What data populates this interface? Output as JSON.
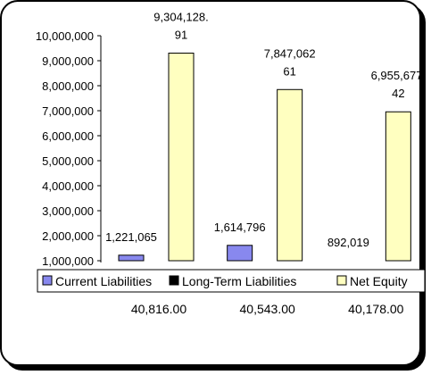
{
  "chart_data": {
    "type": "bar",
    "title": "",
    "xlabel": "",
    "ylabel": "",
    "categories": [
      "40,816.00",
      "40,543.00",
      "40,178.00"
    ],
    "series": [
      {
        "name": "Current Liabilities",
        "color": "#8888ee",
        "values": [
          1221065,
          1614796,
          892019
        ],
        "labels": [
          "1,221,065",
          "1,614,796",
          "892,019"
        ]
      },
      {
        "name": "Long-Term Liabilities",
        "color": "#000000",
        "values": [
          0,
          0,
          0
        ],
        "labels": [
          "",
          "",
          ""
        ]
      },
      {
        "name": "Net Equity",
        "color": "#ffffc0",
        "values": [
          9304128.91,
          7847062.61,
          6955677.42
        ],
        "labels": [
          [
            "9,304,128.",
            "91"
          ],
          [
            "7,847,062",
            "61"
          ],
          [
            "6,955,677.",
            "42"
          ]
        ]
      }
    ],
    "yticks": [
      "10,000,000",
      "9,000,000",
      "8,000,000",
      "7,000,000",
      "6,000,000",
      "5,000,000",
      "4,000,000",
      "3,000,000",
      "2,000,000",
      "1,000,000"
    ],
    "ylim": [
      1000000,
      10000000
    ],
    "grid": false,
    "legend_position": "bottom"
  }
}
